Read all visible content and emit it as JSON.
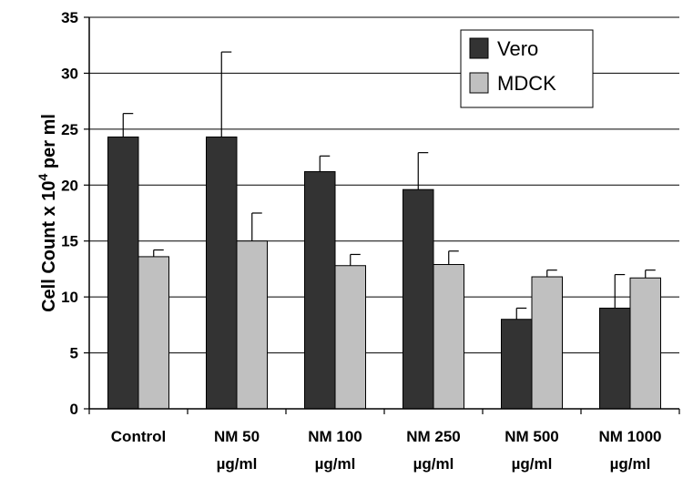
{
  "chart_data": {
    "type": "bar",
    "title": "",
    "xlabel": "",
    "ylabel": "Cell Count x 10",
    "ylabel_sup": "4",
    "ylabel_suffix": " per ml",
    "ylim": [
      0,
      35
    ],
    "yticks": [
      "0",
      "5",
      "10",
      "15",
      "20",
      "25",
      "30",
      "35"
    ],
    "grid": true,
    "legend_position": "top-right",
    "categories": [
      [
        "Control"
      ],
      [
        "NM 50",
        "µg/ml"
      ],
      [
        "NM 100",
        "µg/ml"
      ],
      [
        "NM 250",
        "µg/ml"
      ],
      [
        "NM 500",
        "µg/ml"
      ],
      [
        "NM 1000",
        "µg/ml"
      ]
    ],
    "series": [
      {
        "name": "Vero",
        "color": "#333333",
        "values": [
          24.3,
          24.3,
          21.2,
          19.6,
          8.0,
          9.0
        ],
        "errors": [
          2.1,
          7.6,
          1.4,
          3.3,
          1.0,
          3.0
        ]
      },
      {
        "name": "MDCK",
        "color": "#c0c0c0",
        "values": [
          13.6,
          15.0,
          12.8,
          12.9,
          11.8,
          11.7
        ],
        "errors": [
          0.6,
          2.5,
          1.0,
          1.2,
          0.6,
          0.7
        ]
      }
    ]
  }
}
